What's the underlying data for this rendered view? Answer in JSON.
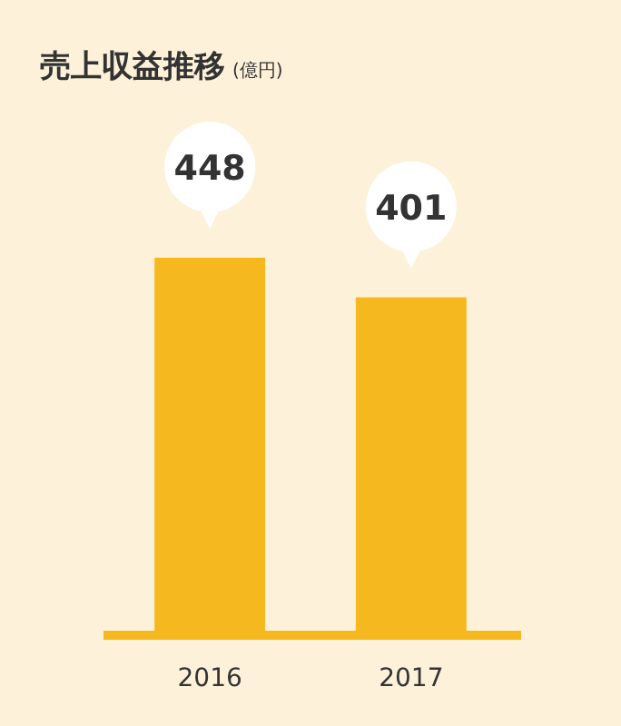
{
  "chart_data": {
    "type": "bar",
    "title": "売上収益推移",
    "subtitle": "(億円)",
    "categories": [
      "2016",
      "2017"
    ],
    "values": [
      448,
      401
    ],
    "color": "#f6b81f",
    "data_labels": true
  }
}
